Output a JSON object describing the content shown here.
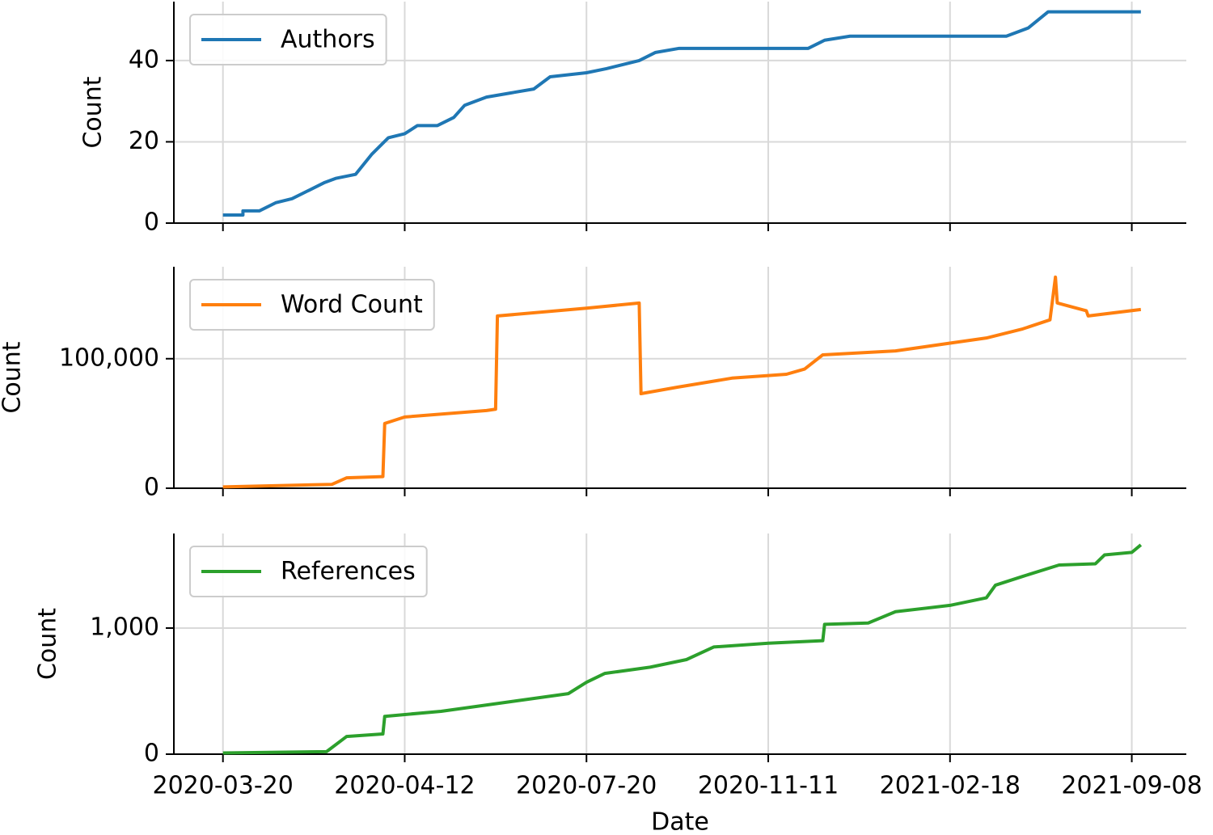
{
  "chart_data": [
    {
      "type": "line",
      "ylabel": "Count",
      "legend": "upper left",
      "grid": true,
      "ylim": [
        0,
        54.5
      ],
      "yticks": [
        0,
        20,
        40
      ],
      "series": [
        {
          "name": "Authors",
          "color": "#1f77b4",
          "x": [
            0,
            11,
            11,
            20,
            29,
            38,
            47,
            56,
            62,
            73,
            82,
            91,
            100,
            107,
            118,
            127,
            133,
            145,
            158,
            171,
            180,
            200,
            211,
            229,
            238,
            251,
            305,
            322,
            331,
            345,
            431,
            443,
            454,
            505
          ],
          "values": [
            2,
            2,
            3,
            3,
            5,
            6,
            8,
            10,
            11,
            12,
            17,
            21,
            22,
            24,
            24,
            26,
            29,
            31,
            32,
            33,
            36,
            37,
            38,
            40,
            42,
            43,
            43,
            43,
            45,
            46,
            46,
            48,
            52,
            52
          ]
        }
      ]
    },
    {
      "type": "line",
      "ylabel": "Count",
      "legend": "upper left",
      "grid": true,
      "ylim": [
        0,
        171000
      ],
      "yticks": [
        0,
        {
          "value": 100000,
          "label": "100,000"
        }
      ],
      "series": [
        {
          "name": "Word Count",
          "color": "#ff7f0e",
          "x": [
            0,
            60,
            68,
            88,
            89,
            100,
            145,
            150,
            151,
            200,
            229,
            230,
            250,
            280,
            300,
            310,
            320,
            330,
            370,
            400,
            420,
            440,
            455,
            458,
            459,
            475,
            476,
            505
          ],
          "values": [
            1000,
            3000,
            8000,
            9000,
            50000,
            55000,
            60000,
            61000,
            133000,
            139000,
            143000,
            73000,
            78000,
            85000,
            87000,
            88000,
            92000,
            103000,
            106000,
            112000,
            116000,
            123000,
            130000,
            163000,
            143000,
            137000,
            133000,
            138000
          ]
        }
      ]
    },
    {
      "type": "line",
      "ylabel": "Count",
      "xlabel": "Date",
      "legend": "upper left",
      "grid": true,
      "xlim": [
        -27,
        530
      ],
      "xticks": [
        {
          "value": 0,
          "label": "2020-03-20"
        },
        {
          "value": 100,
          "label": "2020-04-12"
        },
        {
          "value": 200,
          "label": "2020-07-20"
        },
        {
          "value": 300,
          "label": "2020-11-11"
        },
        {
          "value": 400,
          "label": "2021-02-18"
        },
        {
          "value": 500,
          "label": "2021-09-08"
        }
      ],
      "ylim": [
        0,
        1750
      ],
      "yticks": [
        0,
        {
          "value": 1000,
          "label": "1,000"
        }
      ],
      "series": [
        {
          "name": "References",
          "color": "#2ca02c",
          "x": [
            0,
            57,
            68,
            88,
            89,
            120,
            160,
            190,
            200,
            210,
            235,
            255,
            270,
            300,
            330,
            331,
            355,
            370,
            400,
            420,
            425,
            440,
            460,
            480,
            485,
            500,
            505
          ],
          "values": [
            10,
            20,
            140,
            160,
            300,
            340,
            420,
            480,
            570,
            640,
            690,
            750,
            850,
            880,
            900,
            1030,
            1040,
            1130,
            1180,
            1240,
            1340,
            1410,
            1500,
            1510,
            1580,
            1600,
            1660
          ]
        }
      ]
    }
  ]
}
